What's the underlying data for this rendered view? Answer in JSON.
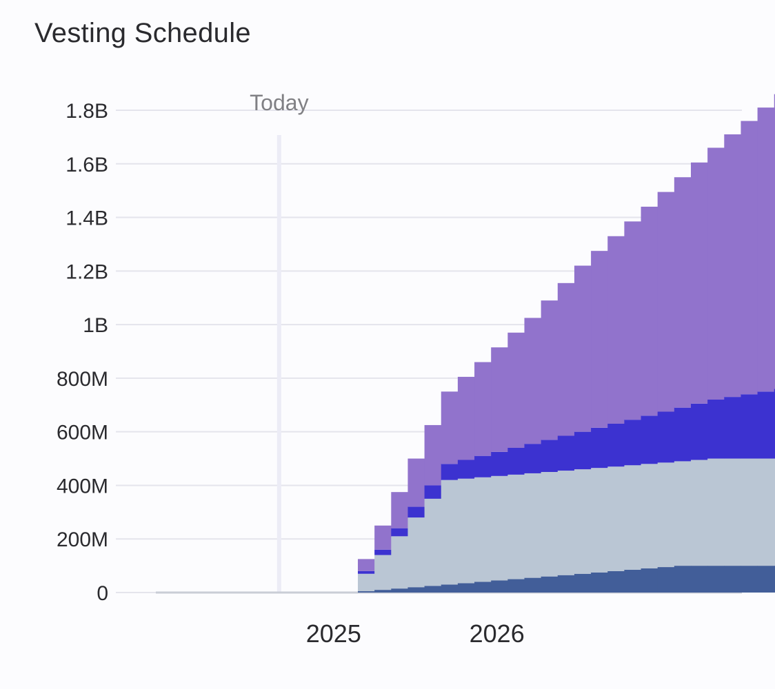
{
  "title": "Vesting Schedule",
  "colors": {
    "background": "#fcfcfe",
    "grid": "#e4e4ec",
    "today_line": "#ececf6",
    "text": "#2a2a2e",
    "marker_text": "#808084"
  },
  "chart_data": {
    "type": "area",
    "stacked": true,
    "step": true,
    "title": "Vesting Schedule",
    "xlabel": "",
    "ylabel": "",
    "ylim": [
      0,
      1800000000
    ],
    "y_ticks": [
      {
        "value": 0,
        "label": "0"
      },
      {
        "value": 200000000,
        "label": "200M"
      },
      {
        "value": 400000000,
        "label": "400M"
      },
      {
        "value": 600000000,
        "label": "600M"
      },
      {
        "value": 800000000,
        "label": "800M"
      },
      {
        "value": 1000000000,
        "label": "1B"
      },
      {
        "value": 1200000000,
        "label": "1.2B"
      },
      {
        "value": 1400000000,
        "label": "1.4B"
      },
      {
        "value": 1600000000,
        "label": "1.6B"
      },
      {
        "value": 1800000000,
        "label": "1.8B"
      }
    ],
    "xlim": [
      "2023-09",
      "2027-07"
    ],
    "x_ticks": [
      {
        "value": "2025-01",
        "label": "2025"
      },
      {
        "value": "2026-01",
        "label": "2026"
      }
    ],
    "marker": {
      "x": "2024-09",
      "label": "Today"
    },
    "x": [
      "2023-09",
      "2023-10",
      "2023-11",
      "2023-12",
      "2024-01",
      "2024-02",
      "2024-03",
      "2024-04",
      "2024-05",
      "2024-06",
      "2024-07",
      "2024-08",
      "2024-09",
      "2024-10",
      "2024-11",
      "2024-12",
      "2025-01",
      "2025-02",
      "2025-03",
      "2025-04",
      "2025-05",
      "2025-06",
      "2025-07",
      "2025-08",
      "2025-09",
      "2025-10",
      "2025-11",
      "2025-12",
      "2026-01",
      "2026-02",
      "2026-03",
      "2026-04",
      "2026-05",
      "2026-06",
      "2026-07",
      "2026-08",
      "2026-09",
      "2026-10",
      "2026-11",
      "2026-12",
      "2027-01",
      "2027-02",
      "2027-03",
      "2027-04",
      "2027-05",
      "2027-06"
    ],
    "series": [
      {
        "color": "#425e99",
        "values": [
          0,
          0,
          0,
          0,
          0,
          0,
          0,
          0,
          0,
          0,
          0,
          0,
          0,
          0,
          0,
          0,
          5,
          10,
          15,
          20,
          25,
          30,
          35,
          40,
          45,
          50,
          55,
          60,
          65,
          70,
          75,
          80,
          85,
          90,
          95,
          100,
          100,
          100,
          100,
          100,
          100,
          100,
          100,
          100,
          100,
          100
        ]
      },
      {
        "color": "#bac6d4",
        "values": [
          0,
          0,
          0,
          0,
          0,
          0,
          0,
          0,
          0,
          0,
          0,
          0,
          0,
          0,
          0,
          0,
          65,
          130,
          195,
          260,
          325,
          390,
          390,
          390,
          390,
          390,
          390,
          390,
          390,
          390,
          390,
          390,
          390,
          390,
          390,
          390,
          395,
          400,
          400,
          400,
          400,
          400,
          400,
          400,
          400,
          400
        ]
      },
      {
        "color": "#3c32d0",
        "values": [
          0,
          0,
          0,
          0,
          0,
          0,
          0,
          0,
          0,
          0,
          0,
          0,
          0,
          0,
          0,
          0,
          10,
          20,
          30,
          40,
          50,
          60,
          70,
          80,
          90,
          100,
          110,
          120,
          130,
          140,
          150,
          160,
          170,
          180,
          190,
          200,
          210,
          220,
          230,
          240,
          250,
          260,
          270,
          280,
          280,
          280
        ]
      },
      {
        "color": "#9173cc",
        "values": [
          0,
          0,
          0,
          0,
          0,
          0,
          0,
          0,
          0,
          0,
          0,
          0,
          0,
          0,
          0,
          0,
          45,
          90,
          135,
          180,
          225,
          270,
          310,
          350,
          390,
          430,
          470,
          520,
          570,
          620,
          660,
          700,
          740,
          780,
          820,
          860,
          900,
          940,
          980,
          1020,
          1060,
          1100,
          1140,
          1180,
          1200,
          1220
        ]
      }
    ],
    "value_unit": "M"
  }
}
